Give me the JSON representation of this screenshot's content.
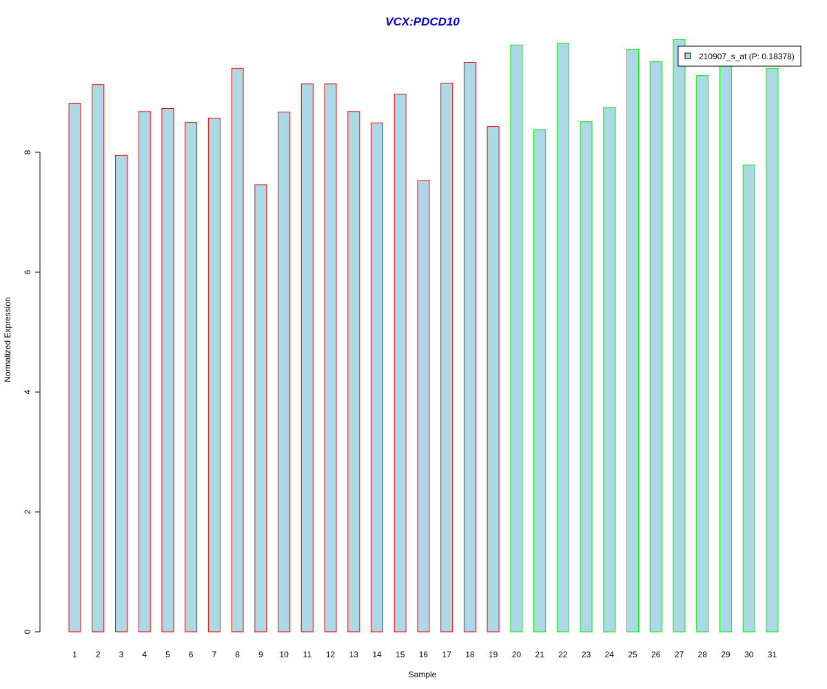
{
  "chart_data": {
    "type": "bar",
    "title": "VCX:PDCD10",
    "title_color": "#0000cc",
    "xlabel": "Sample",
    "ylabel": "Normalized Expression",
    "ylim": [
      0,
      10
    ],
    "yticks": [
      0,
      2,
      4,
      6,
      8
    ],
    "grid": false,
    "bar_fill": "#add8e6",
    "categories": [
      "1",
      "2",
      "3",
      "4",
      "5",
      "6",
      "7",
      "8",
      "9",
      "10",
      "11",
      "12",
      "13",
      "14",
      "15",
      "16",
      "17",
      "18",
      "19",
      "20",
      "21",
      "22",
      "23",
      "24",
      "25",
      "26",
      "27",
      "28",
      "29",
      "30",
      "31"
    ],
    "values": [
      8.81,
      9.13,
      7.95,
      8.68,
      8.73,
      8.5,
      8.57,
      9.4,
      7.46,
      8.67,
      9.14,
      9.14,
      8.68,
      8.49,
      8.97,
      7.53,
      9.15,
      9.5,
      8.43,
      9.79,
      8.38,
      9.82,
      8.51,
      8.75,
      9.72,
      9.51,
      9.88,
      9.28,
      9.55,
      7.79,
      9.4
    ],
    "groups": [
      {
        "name": "",
        "color": "#ff0000",
        "start": 0,
        "end": 18
      },
      {
        "name": "",
        "color": "#00ee00",
        "start": 19,
        "end": 30
      }
    ],
    "series": [
      {
        "name": "210907_s_at (P: 0.18378)",
        "values": [
          8.81,
          9.13,
          7.95,
          8.68,
          8.73,
          8.5,
          8.57,
          9.4,
          7.46,
          8.67,
          9.14,
          9.14,
          8.68,
          8.49,
          8.97,
          7.53,
          9.15,
          9.5,
          8.43,
          9.79,
          8.38,
          9.82,
          8.51,
          8.75,
          9.72,
          9.51,
          9.88,
          9.28,
          9.55,
          7.79,
          9.4
        ]
      }
    ],
    "legend": {
      "position": "top-right",
      "label": "210907_s_at (P: 0.18378)",
      "swatch_color": "#add8e6"
    }
  }
}
